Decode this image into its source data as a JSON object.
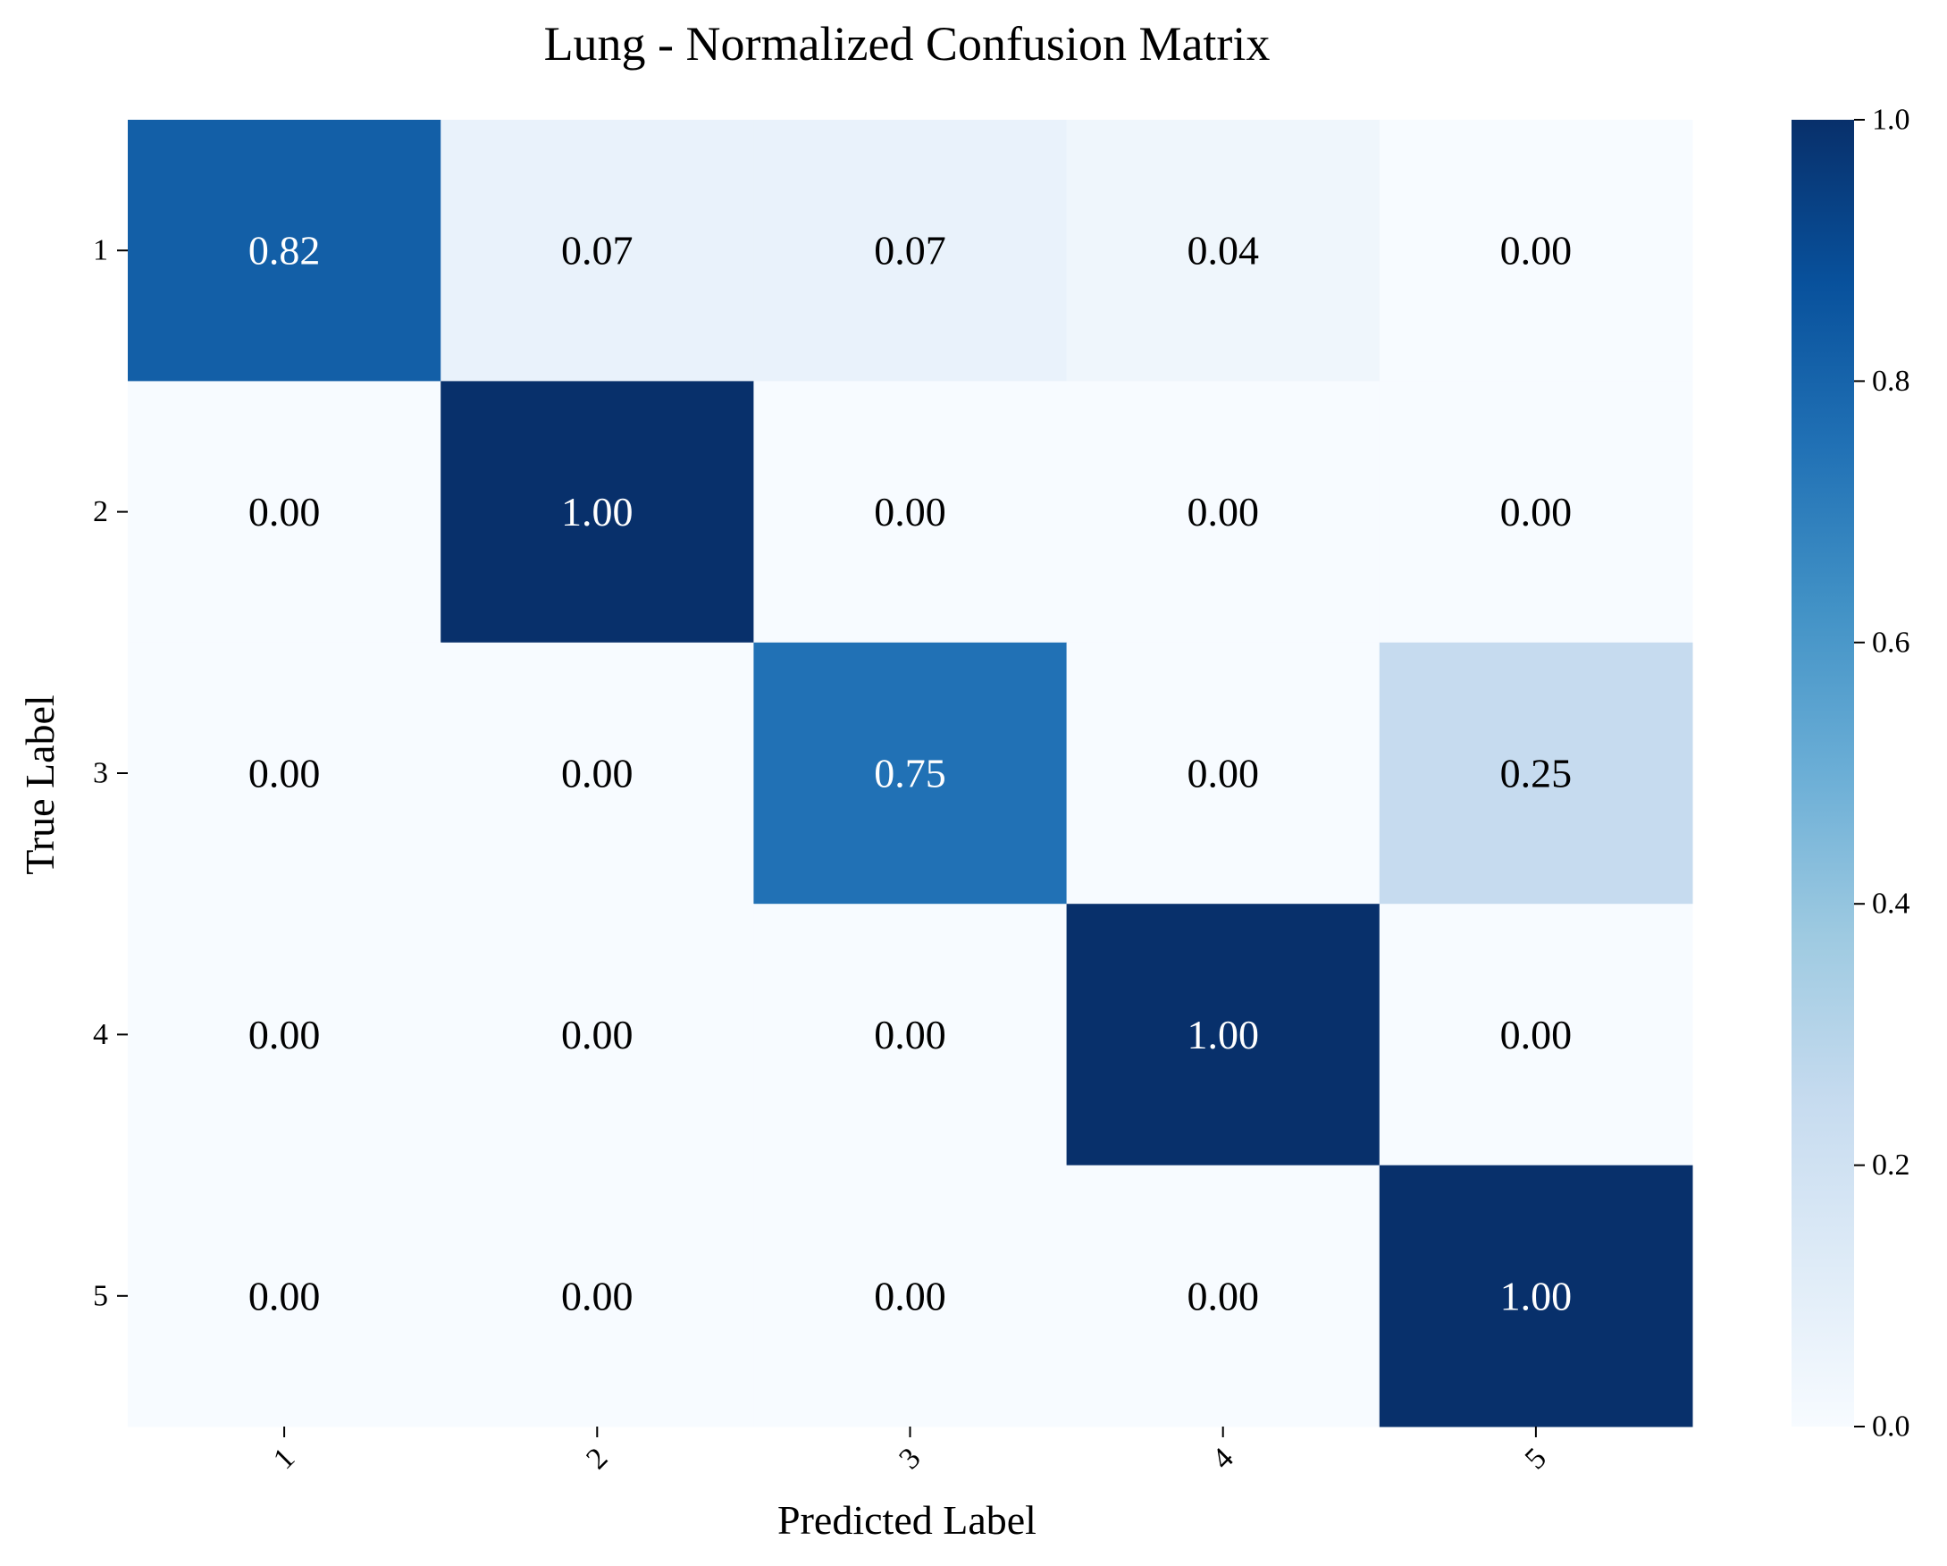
{
  "chart_data": {
    "type": "heatmap",
    "title": "Lung - Normalized Confusion Matrix",
    "xlabel": "Predicted Label",
    "ylabel": "True Label",
    "x_categories": [
      "1",
      "2",
      "3",
      "4",
      "5"
    ],
    "y_categories": [
      "1",
      "2",
      "3",
      "4",
      "5"
    ],
    "values": [
      [
        0.82,
        0.07,
        0.07,
        0.04,
        0.0
      ],
      [
        0.0,
        1.0,
        0.0,
        0.0,
        0.0
      ],
      [
        0.0,
        0.0,
        0.75,
        0.0,
        0.25
      ],
      [
        0.0,
        0.0,
        0.0,
        1.0,
        0.0
      ],
      [
        0.0,
        0.0,
        0.0,
        0.0,
        1.0
      ]
    ],
    "cell_labels": [
      [
        "0.82",
        "0.07",
        "0.07",
        "0.04",
        "0.00"
      ],
      [
        "0.00",
        "1.00",
        "0.00",
        "0.00",
        "0.00"
      ],
      [
        "0.00",
        "0.00",
        "0.75",
        "0.00",
        "0.25"
      ],
      [
        "0.00",
        "0.00",
        "0.00",
        "1.00",
        "0.00"
      ],
      [
        "0.00",
        "0.00",
        "0.00",
        "0.00",
        "1.00"
      ]
    ],
    "colormap": "Blues",
    "colormap_stops": [
      "#f7fbff",
      "#deebf7",
      "#c6dbef",
      "#9ecae1",
      "#6baed6",
      "#4292c6",
      "#2171b5",
      "#08519c",
      "#08306b"
    ],
    "vmin": 0.0,
    "vmax": 1.0,
    "colorbar_ticks": [
      "0.0",
      "0.2",
      "0.4",
      "0.6",
      "0.8",
      "1.0"
    ],
    "colorbar_tick_values": [
      0.0,
      0.2,
      0.4,
      0.6,
      0.8,
      1.0
    ],
    "x_tick_rotation": 45,
    "grid": false
  }
}
